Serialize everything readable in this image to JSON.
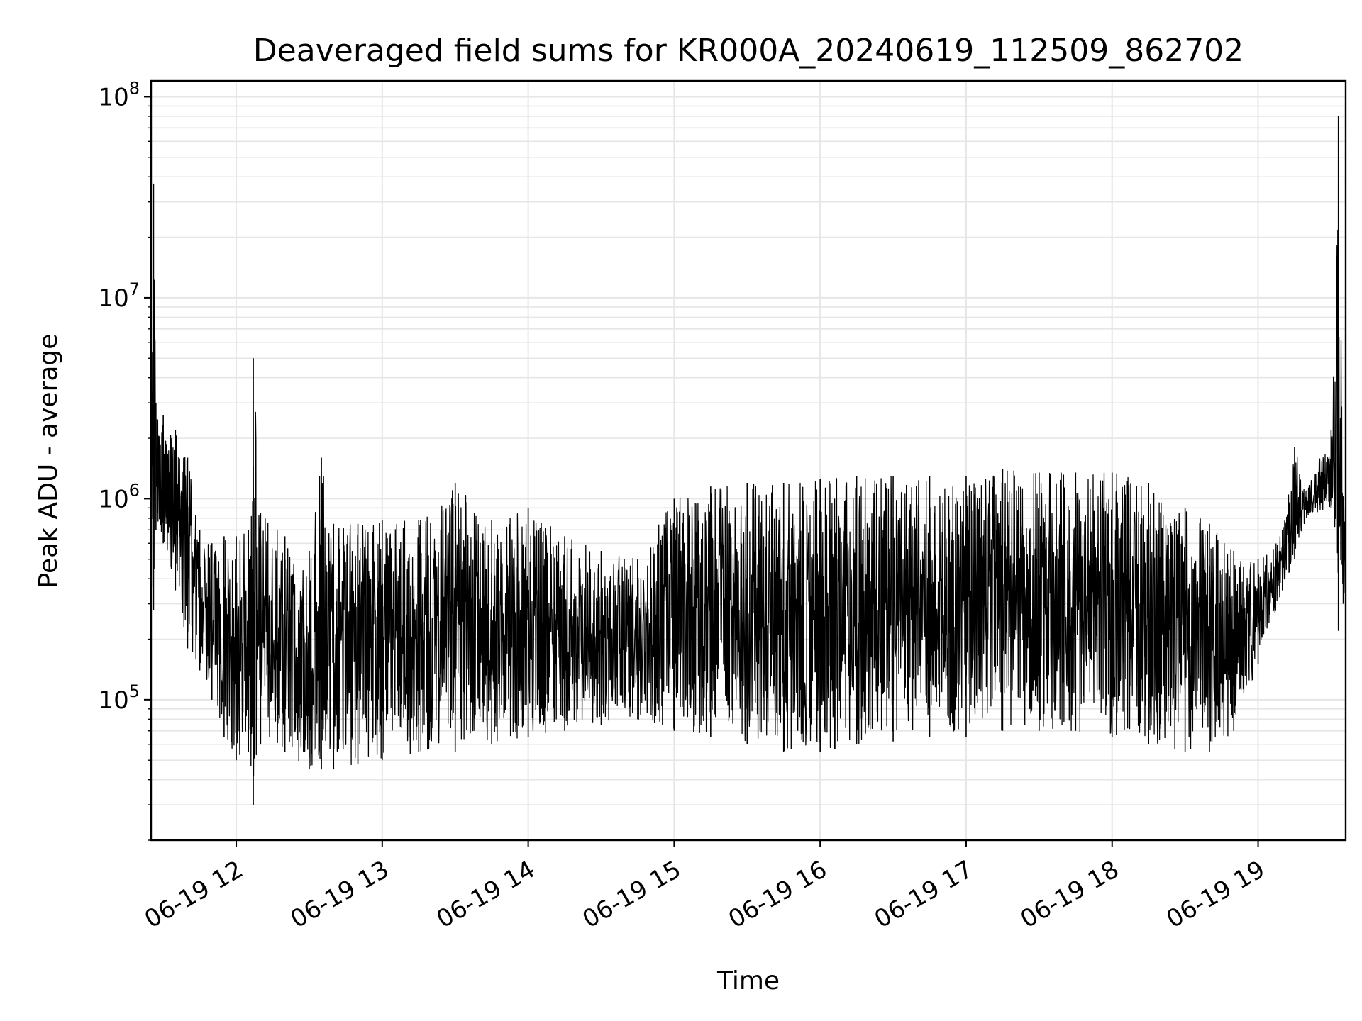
{
  "chart_data": {
    "type": "line",
    "title": "Deaveraged field sums for KR000A_20240619_112509_862702",
    "xlabel": "Time",
    "ylabel": "Peak ADU - average",
    "yscale": "log",
    "ylim": [
      20000,
      120000000
    ],
    "xlim": [
      "2024-06-19 11:25",
      "2024-06-19 19:36"
    ],
    "grid": true,
    "line_color": "#000000",
    "grid_color": "#e6e6e6",
    "x_ticks": [
      {
        "value": "2024-06-19 12:00",
        "label": "06-19 12"
      },
      {
        "value": "2024-06-19 13:00",
        "label": "06-19 13"
      },
      {
        "value": "2024-06-19 14:00",
        "label": "06-19 14"
      },
      {
        "value": "2024-06-19 15:00",
        "label": "06-19 15"
      },
      {
        "value": "2024-06-19 16:00",
        "label": "06-19 16"
      },
      {
        "value": "2024-06-19 17:00",
        "label": "06-19 17"
      },
      {
        "value": "2024-06-19 18:00",
        "label": "06-19 18"
      },
      {
        "value": "2024-06-19 19:00",
        "label": "06-19 19"
      }
    ],
    "y_ticks": [
      {
        "value": 100000,
        "base": "10",
        "exp": "5"
      },
      {
        "value": 1000000,
        "base": "10",
        "exp": "6"
      },
      {
        "value": 10000000,
        "base": "10",
        "exp": "7"
      },
      {
        "value": 100000000,
        "base": "10",
        "exp": "8"
      }
    ],
    "series": [
      {
        "x": [
          "2024-06-19 11:25",
          "2024-06-19 11:26",
          "2024-06-19 11:27",
          "2024-06-19 11:30",
          "2024-06-19 11:35",
          "2024-06-19 11:40",
          "2024-06-19 11:45",
          "2024-06-19 11:50",
          "2024-06-19 11:55",
          "2024-06-19 12:00",
          "2024-06-19 12:05",
          "2024-06-19 12:07",
          "2024-06-19 12:10",
          "2024-06-19 12:20",
          "2024-06-19 12:30",
          "2024-06-19 12:35",
          "2024-06-19 12:40",
          "2024-06-19 12:50",
          "2024-06-19 13:00",
          "2024-06-19 13:15",
          "2024-06-19 13:30",
          "2024-06-19 13:45",
          "2024-06-19 14:00",
          "2024-06-19 14:15",
          "2024-06-19 14:30",
          "2024-06-19 14:45",
          "2024-06-19 15:00",
          "2024-06-19 15:15",
          "2024-06-19 15:30",
          "2024-06-19 15:45",
          "2024-06-19 16:00",
          "2024-06-19 16:15",
          "2024-06-19 16:30",
          "2024-06-19 16:45",
          "2024-06-19 17:00",
          "2024-06-19 17:15",
          "2024-06-19 17:30",
          "2024-06-19 17:45",
          "2024-06-19 18:00",
          "2024-06-19 18:15",
          "2024-06-19 18:30",
          "2024-06-19 18:40",
          "2024-06-19 18:50",
          "2024-06-19 19:00",
          "2024-06-19 19:10",
          "2024-06-19 19:15",
          "2024-06-19 19:20",
          "2024-06-19 19:30",
          "2024-06-19 19:33",
          "2024-06-19 19:35"
        ],
        "upper": [
          1500000,
          37000000,
          3000000,
          2600000,
          2200000,
          1600000,
          700000,
          600000,
          650000,
          650000,
          700000,
          5000000,
          850000,
          650000,
          550000,
          1600000,
          750000,
          750000,
          780000,
          780000,
          1200000,
          780000,
          900000,
          650000,
          550000,
          500000,
          1000000,
          1150000,
          1200000,
          1200000,
          1250000,
          1300000,
          1300000,
          1300000,
          1300000,
          1400000,
          1350000,
          1350000,
          1350000,
          1200000,
          900000,
          750000,
          550000,
          500000,
          700000,
          1800000,
          1100000,
          2200000,
          80000000,
          1000000
        ],
        "lower": [
          350000,
          280000,
          700000,
          600000,
          350000,
          180000,
          140000,
          100000,
          65000,
          50000,
          55000,
          30000,
          60000,
          55000,
          45000,
          45000,
          45000,
          48000,
          50000,
          55000,
          55000,
          60000,
          65000,
          70000,
          75000,
          80000,
          70000,
          65000,
          60000,
          55000,
          55000,
          60000,
          62000,
          65000,
          65000,
          70000,
          70000,
          70000,
          65000,
          60000,
          55000,
          55000,
          70000,
          150000,
          350000,
          500000,
          800000,
          900000,
          220000,
          300000
        ]
      }
    ]
  }
}
